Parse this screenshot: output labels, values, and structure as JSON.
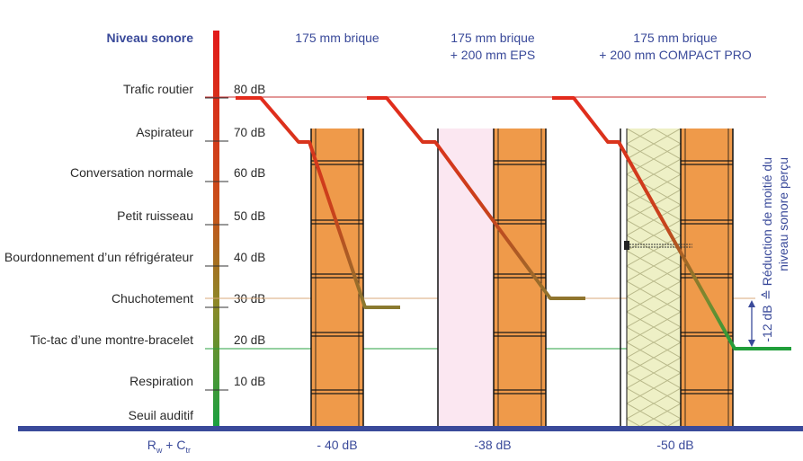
{
  "title": "Niveau sonore",
  "levels": [
    {
      "label": "Trafic routier",
      "db": "80 dB"
    },
    {
      "label": "Aspirateur",
      "db": "70 dB"
    },
    {
      "label": "Conversation normale",
      "db": "60 dB"
    },
    {
      "label": "Petit ruisseau",
      "db": "50 dB"
    },
    {
      "label": "Bourdonnement d’un réfrigérateur",
      "db": "40 dB"
    },
    {
      "label": "Chuchotement",
      "db": "30 dB"
    },
    {
      "label": "Tic-tac d’une montre-bracelet",
      "db": "20 dB"
    },
    {
      "label": "Respiration",
      "db": "10 dB"
    },
    {
      "label": "Seuil auditif",
      "db": ""
    }
  ],
  "walls": [
    {
      "title1": "175 mm brique",
      "title2": "",
      "result": "- 40 dB"
    },
    {
      "title1": "175 mm brique",
      "title2": "+ 200 mm EPS",
      "result": "-38 dB"
    },
    {
      "title1": "175 mm brique",
      "title2": "+ 200 mm COMPACT PRO",
      "result": "-50 dB"
    }
  ],
  "axis_label_main": "R",
  "axis_label_sub1": "w",
  "axis_label_plus": " + C",
  "axis_label_sub2": "tr",
  "reduction": {
    "value": "-12 dB",
    "text1": "≙ Réduction de moitié du",
    "text2": "niveau sonore perçu"
  },
  "colors": {
    "blue": "#3a4a9a",
    "brick": "#ef9a4a",
    "insulation": "#eef0c4",
    "eps": "#fbe7f1",
    "line_red": "#e32b1c",
    "line_green": "#1f9e3a"
  }
}
